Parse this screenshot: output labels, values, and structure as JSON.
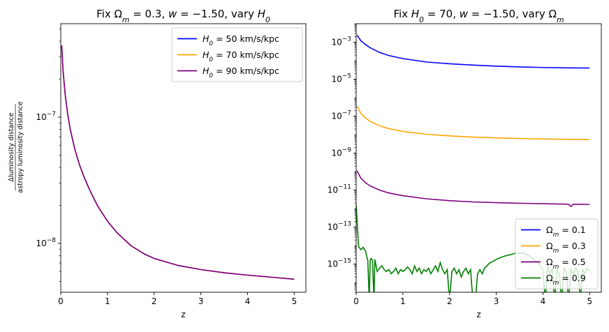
{
  "chart_data": [
    {
      "type": "line",
      "title_parts": [
        "Fix Ω",
        "m",
        " = 0.3, ",
        "w",
        " = −1.50, vary ",
        "H",
        "0"
      ],
      "xlabel": "z",
      "ylabel_numerator": "Δluminosity distance",
      "ylabel_denominator": "astropy luminosity distance",
      "xlim": [
        0,
        5.25
      ],
      "ylim": [
        4.1e-09,
        5.5e-07
      ],
      "yscale": "log",
      "x_ticks": [
        0,
        1,
        2,
        3,
        4,
        5
      ],
      "x_tick_labels": [
        "0",
        "1",
        "2",
        "3",
        "4",
        "5"
      ],
      "y_major_ticks": [
        1e-08,
        1e-07
      ],
      "y_tick_labels": [
        {
          "base": "10",
          "exp": "−8"
        },
        {
          "base": "10",
          "exp": "−7"
        }
      ],
      "legend": "top-right",
      "grid": false,
      "series": [
        {
          "label_parts": [
            "H",
            "0",
            " = 50 km/s/kpc"
          ],
          "color": "#0000ff",
          "x": [
            0.02,
            0.05,
            0.1,
            0.15,
            0.2,
            0.3,
            0.4,
            0.5,
            0.6,
            0.7,
            0.8,
            1.0,
            1.2,
            1.5,
            1.8,
            2.0,
            2.5,
            3.0,
            3.5,
            4.0,
            4.5,
            5.0
          ],
          "y": [
            3.7e-07,
            2.3e-07,
            1.45e-07,
            1.05e-07,
            8.1e-08,
            5.6e-08,
            4.2e-08,
            3.35e-08,
            2.75e-08,
            2.3e-08,
            1.95e-08,
            1.5e-08,
            1.22e-08,
            9.6e-09,
            8.2e-09,
            7.6e-09,
            6.7e-09,
            6.2e-09,
            5.85e-09,
            5.6e-09,
            5.4e-09,
            5.2e-09
          ]
        },
        {
          "label_parts": [
            "H",
            "0",
            " = 70 km/s/kpc"
          ],
          "color": "#ffa500",
          "x": [
            0.02,
            0.05,
            0.1,
            0.15,
            0.2,
            0.3,
            0.4,
            0.5,
            0.6,
            0.7,
            0.8,
            1.0,
            1.2,
            1.5,
            1.8,
            2.0,
            2.5,
            3.0,
            3.5,
            4.0,
            4.5,
            5.0
          ],
          "y": [
            3.7e-07,
            2.3e-07,
            1.45e-07,
            1.05e-07,
            8.1e-08,
            5.6e-08,
            4.2e-08,
            3.35e-08,
            2.75e-08,
            2.3e-08,
            1.95e-08,
            1.5e-08,
            1.22e-08,
            9.6e-09,
            8.2e-09,
            7.6e-09,
            6.7e-09,
            6.2e-09,
            5.85e-09,
            5.6e-09,
            5.4e-09,
            5.2e-09
          ]
        },
        {
          "label_parts": [
            "H",
            "0",
            " = 90 km/s/kpc"
          ],
          "color": "#800080",
          "x": [
            0.02,
            0.05,
            0.1,
            0.15,
            0.2,
            0.3,
            0.4,
            0.5,
            0.6,
            0.7,
            0.8,
            1.0,
            1.2,
            1.5,
            1.8,
            2.0,
            2.5,
            3.0,
            3.5,
            4.0,
            4.5,
            5.0
          ],
          "y": [
            3.7e-07,
            2.3e-07,
            1.45e-07,
            1.05e-07,
            8.1e-08,
            5.6e-08,
            4.2e-08,
            3.35e-08,
            2.75e-08,
            2.3e-08,
            1.95e-08,
            1.5e-08,
            1.22e-08,
            9.6e-09,
            8.2e-09,
            7.6e-09,
            6.7e-09,
            6.2e-09,
            5.85e-09,
            5.6e-09,
            5.4e-09,
            5.2e-09
          ]
        }
      ]
    },
    {
      "type": "line",
      "title_parts": [
        "Fix ",
        "H",
        "0",
        " = 70, ",
        "w",
        " = −1.50, vary Ω",
        "m"
      ],
      "xlabel": "z",
      "xlim": [
        0,
        5.25
      ],
      "ylim": [
        3e-17,
        0.01
      ],
      "yscale": "log",
      "x_ticks": [
        0,
        1,
        2,
        3,
        4,
        5
      ],
      "x_tick_labels": [
        "0",
        "1",
        "2",
        "3",
        "4",
        "5"
      ],
      "y_major_ticks": [
        1e-15,
        1e-13,
        1e-11,
        1e-09,
        1e-07,
        1e-05,
        0.001
      ],
      "y_tick_labels": [
        {
          "base": "10",
          "exp": "−15"
        },
        {
          "base": "10",
          "exp": "−13"
        },
        {
          "base": "10",
          "exp": "−11"
        },
        {
          "base": "10",
          "exp": "−9"
        },
        {
          "base": "10",
          "exp": "−7"
        },
        {
          "base": "10",
          "exp": "−5"
        },
        {
          "base": "10",
          "exp": "−3"
        }
      ],
      "legend": "bottom-right",
      "grid": false,
      "series": [
        {
          "label_parts": [
            "Ω",
            "m",
            " = 0.1"
          ],
          "color": "#0000ff",
          "x": [
            0.02,
            0.1,
            0.2,
            0.3,
            0.5,
            0.7,
            1.0,
            1.5,
            2.0,
            2.5,
            3.0,
            3.5,
            4.0,
            4.5,
            5.0
          ],
          "y": [
            0.0024,
            0.0012,
            0.00075,
            0.0005,
            0.00028,
            0.00019,
            0.00013,
            8.5e-05,
            6.8e-05,
            5.8e-05,
            5.1e-05,
            4.6e-05,
            4.3e-05,
            4.1e-05,
            4e-05
          ]
        },
        {
          "label_parts": [
            "Ω",
            "m",
            " = 0.3"
          ],
          "color": "#ffa500",
          "x": [
            0.02,
            0.1,
            0.2,
            0.3,
            0.5,
            0.7,
            1.0,
            1.5,
            2.0,
            2.5,
            3.0,
            3.5,
            4.0,
            4.5,
            5.0
          ],
          "y": [
            3.5e-07,
            1.4e-07,
            8e-08,
            5.3e-08,
            3e-08,
            2.1e-08,
            1.5e-08,
            1.05e-08,
            8.6e-09,
            7.4e-09,
            6.7e-09,
            6.2e-09,
            5.8e-09,
            5.6e-09,
            5.4e-09
          ]
        },
        {
          "label_parts": [
            "Ω",
            "m",
            " = 0.5"
          ],
          "color": "#800080",
          "x": [
            0.02,
            0.1,
            0.2,
            0.3,
            0.5,
            0.7,
            1.0,
            1.5,
            2.0,
            2.5,
            3.0,
            3.5,
            4.0,
            4.5,
            4.55,
            4.6,
            4.65,
            4.7,
            5.0
          ],
          "y": [
            1.1e-10,
            4.4e-11,
            2.5e-11,
            1.7e-11,
            1e-11,
            7e-12,
            5e-12,
            3.4e-12,
            2.7e-12,
            2.3e-12,
            2.1e-12,
            1.95e-12,
            1.85e-12,
            1.75e-12,
            1.7e-12,
            1.3e-12,
            1.72e-12,
            1.72e-12,
            1.68e-12
          ]
        },
        {
          "label_parts": [
            "Ω",
            "m",
            " = 0.9"
          ],
          "color": "#008000",
          "x": [
            0.0,
            0.05,
            0.1,
            0.15,
            0.2,
            0.25,
            0.28,
            0.3,
            0.32,
            0.35,
            0.38,
            0.4,
            0.45,
            0.5,
            0.55,
            0.6,
            0.65,
            0.7,
            0.75,
            0.8,
            0.85,
            0.9,
            0.95,
            1.0,
            1.05,
            1.1,
            1.15,
            1.2,
            1.25,
            1.3,
            1.35,
            1.4,
            1.45,
            1.5,
            1.55,
            1.6,
            1.65,
            1.7,
            1.75,
            1.8,
            1.85,
            1.9,
            1.95,
            2.0,
            2.05,
            2.1,
            2.15,
            2.2,
            2.25,
            2.3,
            2.35,
            2.4,
            2.45,
            2.5,
            2.55,
            2.6,
            2.65,
            2.7,
            2.75,
            2.8,
            2.85,
            2.9,
            2.95,
            3.0,
            3.1,
            3.2,
            3.3,
            3.4,
            3.5,
            3.6,
            3.7,
            3.8,
            3.9,
            4.0,
            4.05,
            4.1,
            4.15,
            4.2,
            4.25,
            4.3,
            4.35,
            4.4,
            4.45,
            4.5,
            4.55,
            4.6,
            4.65,
            4.7,
            4.75,
            4.8,
            4.85,
            4.9,
            4.95,
            5.0
          ],
          "y": [
            1.5e-12,
            9e-15,
            6e-15,
            8e-15,
            5e-15,
            1.5e-15,
            1e-17,
            1.7e-15,
            2e-15,
            1.6e-15,
            1e-17,
            1.8e-15,
            4e-16,
            6e-16,
            8e-16,
            5e-16,
            4e-16,
            5e-16,
            3e-16,
            4e-16,
            6e-16,
            3e-16,
            5e-16,
            4e-16,
            5e-16,
            7e-16,
            5e-16,
            3e-16,
            8e-16,
            4e-16,
            6e-16,
            3e-16,
            5e-16,
            4e-16,
            6e-16,
            3e-16,
            5e-16,
            8e-16,
            4e-16,
            1.2e-15,
            5e-16,
            3e-16,
            5e-16,
            1e-17,
            4e-16,
            6e-16,
            3e-16,
            5e-16,
            2e-16,
            4e-16,
            6e-16,
            3e-16,
            5e-16,
            1e-17,
            1e-17,
            3e-16,
            5e-16,
            3e-16,
            6e-16,
            8e-16,
            1.1e-15,
            1.3e-15,
            1.5e-15,
            1.8e-15,
            2.3e-15,
            2.8e-15,
            3.2e-15,
            3.8e-15,
            4e-15,
            3.8e-15,
            2.8e-15,
            1.8e-15,
            1.2e-15,
            5e-16,
            1e-17,
            8e-16,
            3e-16,
            6e-16,
            1e-17,
            5e-16,
            3e-16,
            1e-17,
            6e-16,
            4e-16,
            1e-17,
            5e-16,
            3e-16,
            6e-16,
            4e-16,
            1e-17,
            5e-16,
            3e-16,
            6e-16,
            4e-16
          ]
        }
      ]
    }
  ]
}
